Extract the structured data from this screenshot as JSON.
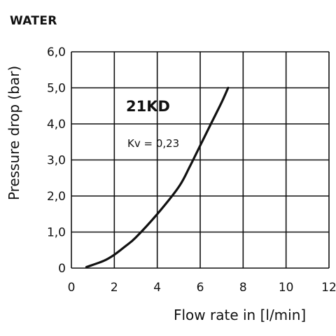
{
  "heading": "WATER",
  "chart_data": {
    "type": "line",
    "title": "",
    "xlabel": "Flow rate in [l/min]",
    "ylabel": "Pressure drop (bar)",
    "xlim": [
      0,
      12
    ],
    "ylim": [
      0,
      6
    ],
    "x_ticks": [
      "0",
      "2",
      "4",
      "6",
      "8",
      "10",
      "12"
    ],
    "y_ticks": [
      "0",
      "1,0",
      "2,0",
      "3,0",
      "4,0",
      "5,0",
      "6,0"
    ],
    "grid": true,
    "series": [
      {
        "name": "21KD",
        "x": [
          0.7,
          1.5,
          2.0,
          2.5,
          3.0,
          4.0,
          5.0,
          5.5,
          6.0,
          6.5,
          7.0,
          7.3
        ],
        "y": [
          0.03,
          0.2,
          0.37,
          0.6,
          0.85,
          1.5,
          2.25,
          2.8,
          3.4,
          4.0,
          4.6,
          5.0
        ]
      }
    ],
    "annotations": {
      "model": "21KD",
      "kv": "Kv = 0,23"
    }
  }
}
